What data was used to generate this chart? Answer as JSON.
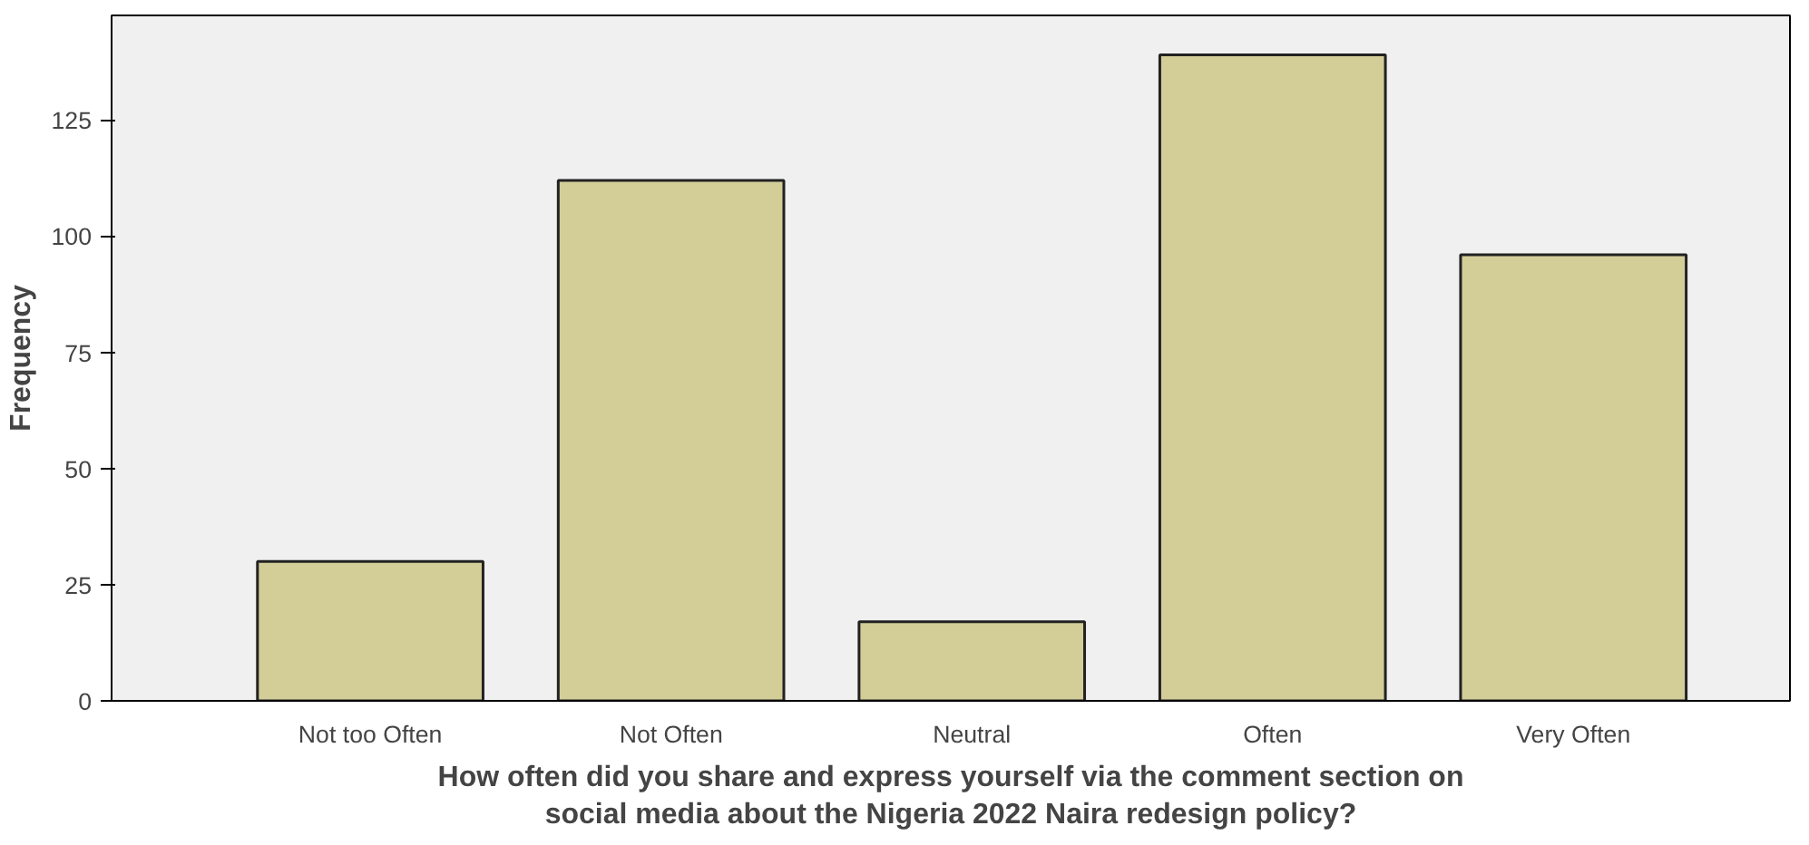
{
  "chart_data": {
    "type": "bar",
    "xlabel": "How often did you share and express yourself via the comment section on social media about the Nigeria 2022 Naira redesign policy?",
    "ylabel": "Frequency",
    "categories": [
      "Not too Often",
      "Not Often",
      "Neutral",
      "Often",
      "Very Often"
    ],
    "values": [
      30,
      112,
      17,
      139,
      96
    ],
    "color": "#d3cd98",
    "ylim": [
      0,
      147.5
    ],
    "yticks": [
      0,
      25,
      50,
      75,
      100,
      125
    ],
    "grid": false
  }
}
